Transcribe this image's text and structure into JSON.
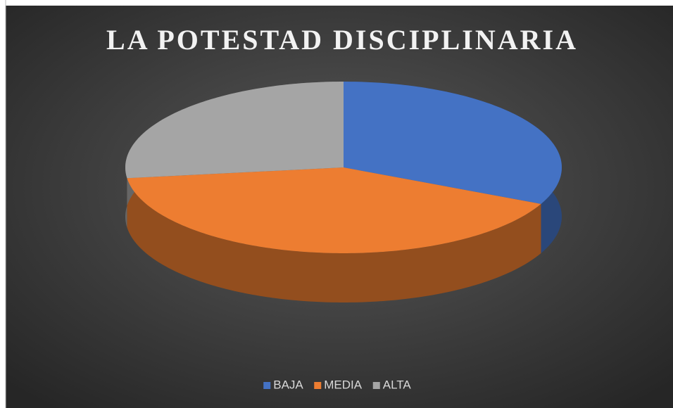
{
  "chart_data": {
    "type": "pie3d",
    "title": "LA POTESTAD DISCIPLINARIA",
    "categories": [
      "BAJA",
      "MEDIA",
      "ALTA"
    ],
    "values": [
      32,
      41,
      27
    ],
    "colors": [
      "#4472c4",
      "#ed7d31",
      "#a5a5a5"
    ],
    "legend": "bottom"
  }
}
